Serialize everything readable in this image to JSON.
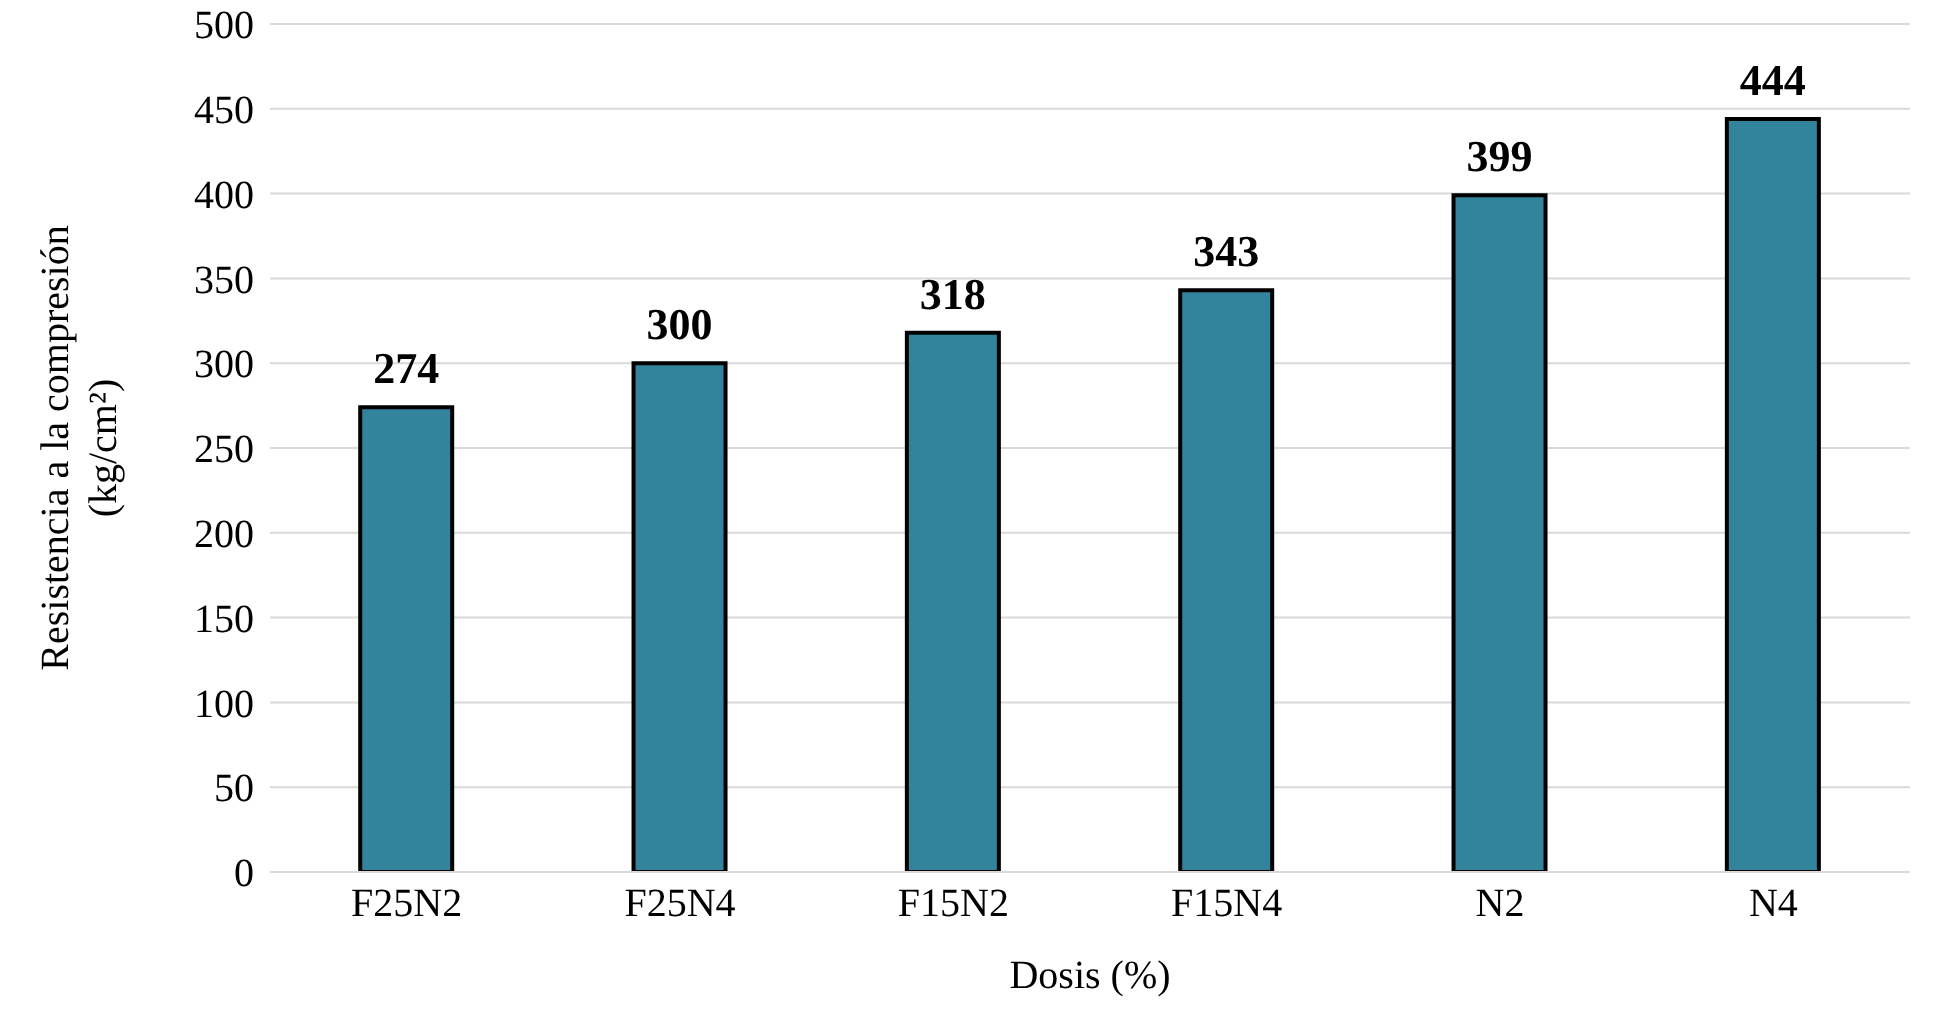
{
  "chart_data": {
    "type": "bar",
    "xlabel": "Dosis (%)",
    "ylabel": "Resistencia a la compresión\n(kg/cm²)",
    "categories": [
      "F25N2",
      "F25N4",
      "F15N2",
      "F15N4",
      "N2",
      "N4"
    ],
    "values": [
      274,
      300,
      318,
      343,
      399,
      444
    ],
    "color": "#31849b",
    "ylim": [
      0,
      500
    ],
    "yticks": [
      0,
      50,
      100,
      150,
      200,
      250,
      300,
      350,
      400,
      450,
      500
    ],
    "grid": "y",
    "data_labels": true
  }
}
